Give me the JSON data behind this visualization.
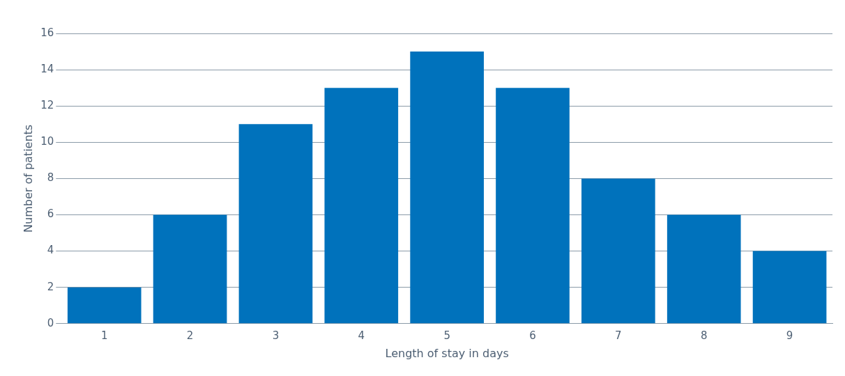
{
  "chart_data": {
    "type": "bar",
    "xlabel": "Length of stay in days",
    "ylabel": "Number of patients",
    "categories": [
      "1",
      "2",
      "3",
      "4",
      "5",
      "6",
      "7",
      "8",
      "9"
    ],
    "values": [
      2,
      6,
      11,
      13,
      15,
      13,
      8,
      6,
      4
    ],
    "color": "#0072bc",
    "ylim": [
      0,
      16
    ],
    "yticks": [
      0,
      2,
      4,
      6,
      8,
      10,
      12,
      14,
      16
    ],
    "grid": "y",
    "legend": false
  }
}
